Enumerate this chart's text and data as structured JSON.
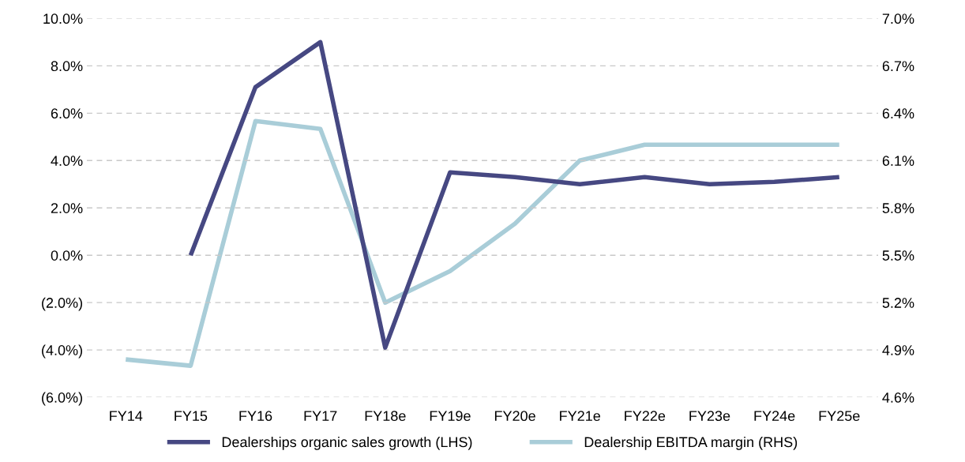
{
  "chart_data": {
    "type": "line",
    "categories": [
      "FY14",
      "FY15",
      "FY16",
      "FY17",
      "FY18e",
      "FY19e",
      "FY20e",
      "FY21e",
      "FY22e",
      "FY23e",
      "FY24e",
      "FY25e"
    ],
    "series": [
      {
        "name": "Dealerships organic sales growth (LHS)",
        "color": "#464882",
        "values": [
          null,
          0.0,
          7.1,
          9.0,
          -3.9,
          3.5,
          3.3,
          3.0,
          3.3,
          3.0,
          3.1,
          3.3
        ]
      },
      {
        "name": "Dealership EBITDA margin (RHS)",
        "color": "#a9cdd8",
        "axis": "y2",
        "values": [
          4.84,
          4.8,
          6.35,
          6.3,
          5.2,
          5.4,
          5.7,
          6.1,
          6.2,
          6.2,
          6.2,
          6.2
        ]
      }
    ],
    "ylim": [
      -6,
      10
    ],
    "yticks": [
      {
        "value": -6,
        "label": "(6.0%)"
      },
      {
        "value": -4,
        "label": "(4.0%)"
      },
      {
        "value": -2,
        "label": "(2.0%)"
      },
      {
        "value": 0,
        "label": "0.0%"
      },
      {
        "value": 2,
        "label": "2.0%"
      },
      {
        "value": 4,
        "label": "4.0%"
      },
      {
        "value": 6,
        "label": "6.0%"
      },
      {
        "value": 8,
        "label": "8.0%"
      },
      {
        "value": 10,
        "label": "10.0%"
      }
    ],
    "y2lim": [
      4.6,
      7.0
    ],
    "y2ticks": [
      {
        "value": 4.6,
        "label": "4.6%"
      },
      {
        "value": 4.9,
        "label": "4.9%"
      },
      {
        "value": 5.2,
        "label": "5.2%"
      },
      {
        "value": 5.5,
        "label": "5.5%"
      },
      {
        "value": 5.8,
        "label": "5.8%"
      },
      {
        "value": 6.1,
        "label": "6.1%"
      },
      {
        "value": 6.4,
        "label": "6.4%"
      },
      {
        "value": 6.7,
        "label": "6.7%"
      },
      {
        "value": 7.0,
        "label": "7.0%"
      }
    ],
    "grid": "y",
    "legend": "bottom",
    "marker": "none",
    "line_style": "solid"
  }
}
